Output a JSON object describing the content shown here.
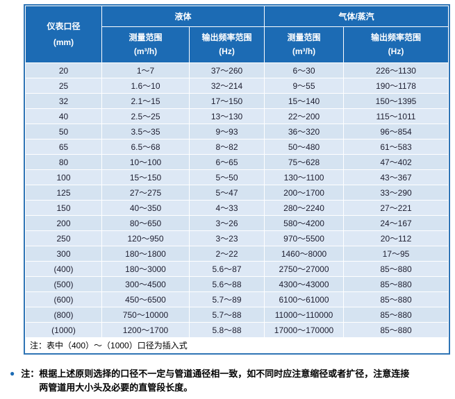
{
  "table": {
    "header": {
      "caliber_label": "仪表口径",
      "caliber_unit": "(mm)",
      "liquid_label": "液体",
      "gas_label": "气体/蒸汽"
    },
    "subheaders": [
      {
        "label": "测量范围",
        "unit": "(m³/h)"
      },
      {
        "label": "输出频率范围",
        "unit": "(Hz)"
      },
      {
        "label": "测量范围",
        "unit": "(m³/h)"
      },
      {
        "label": "输出频率范围",
        "unit": "(Hz)"
      }
    ],
    "rows": [
      {
        "caliber": "20",
        "liquid_range": "1～7",
        "liquid_freq": "37～260",
        "gas_range": "6～30",
        "gas_freq": "226～1130"
      },
      {
        "caliber": "25",
        "liquid_range": "1.6～10",
        "liquid_freq": "32～214",
        "gas_range": "9～55",
        "gas_freq": "190～1178"
      },
      {
        "caliber": "32",
        "liquid_range": "2.1～15",
        "liquid_freq": "17～150",
        "gas_range": "15～140",
        "gas_freq": "150～1395"
      },
      {
        "caliber": "40",
        "liquid_range": "2.5～25",
        "liquid_freq": "13～130",
        "gas_range": "22～200",
        "gas_freq": "115～1011"
      },
      {
        "caliber": "50",
        "liquid_range": "3.5～35",
        "liquid_freq": "9～93",
        "gas_range": "36～320",
        "gas_freq": "96～854"
      },
      {
        "caliber": "65",
        "liquid_range": "6.5～68",
        "liquid_freq": "8～82",
        "gas_range": "50～480",
        "gas_freq": "61～583"
      },
      {
        "caliber": "80",
        "liquid_range": "10～100",
        "liquid_freq": "6～65",
        "gas_range": "75～628",
        "gas_freq": "47～402"
      },
      {
        "caliber": "100",
        "liquid_range": "15～150",
        "liquid_freq": "5～50",
        "gas_range": "130～1100",
        "gas_freq": "43～367"
      },
      {
        "caliber": "125",
        "liquid_range": "27～275",
        "liquid_freq": "5～47",
        "gas_range": "200～1700",
        "gas_freq": "33～290"
      },
      {
        "caliber": "150",
        "liquid_range": "40～350",
        "liquid_freq": "4～33",
        "gas_range": "280～2240",
        "gas_freq": "27～221"
      },
      {
        "caliber": "200",
        "liquid_range": "80～650",
        "liquid_freq": "3～26",
        "gas_range": "580～4200",
        "gas_freq": "24～167"
      },
      {
        "caliber": "250",
        "liquid_range": "120～950",
        "liquid_freq": "3～23",
        "gas_range": "970～5500",
        "gas_freq": "20～112"
      },
      {
        "caliber": "300",
        "liquid_range": "180～1800",
        "liquid_freq": "2～22",
        "gas_range": "1460～8000",
        "gas_freq": "17～95"
      },
      {
        "caliber": "(400)",
        "liquid_range": "180～3000",
        "liquid_freq": "5.6～87",
        "gas_range": "2750～27000",
        "gas_freq": "85～880"
      },
      {
        "caliber": "(500)",
        "liquid_range": "300～4500",
        "liquid_freq": "5.6～88",
        "gas_range": "4300～43000",
        "gas_freq": "85～880"
      },
      {
        "caliber": "(600)",
        "liquid_range": "450～6500",
        "liquid_freq": "5.7～89",
        "gas_range": "6100～61000",
        "gas_freq": "85～880"
      },
      {
        "caliber": "(800)",
        "liquid_range": "750～10000",
        "liquid_freq": "5.7～88",
        "gas_range": "11000～110000",
        "gas_freq": "85～880"
      },
      {
        "caliber": "(1000)",
        "liquid_range": "1200～1700",
        "liquid_freq": "5.8～88",
        "gas_range": "17000～170000",
        "gas_freq": "85～880"
      }
    ],
    "note": "注：表中（400）～（1000）口径为插入式"
  },
  "footnote": {
    "bullet": "●",
    "line1": "注：根据上述原则选择的口径不一定与管道通径相一致，如不同时应注意缩径或者扩径，注意连接",
    "line2": "两管道用大小头及必要的直管段长度。"
  }
}
